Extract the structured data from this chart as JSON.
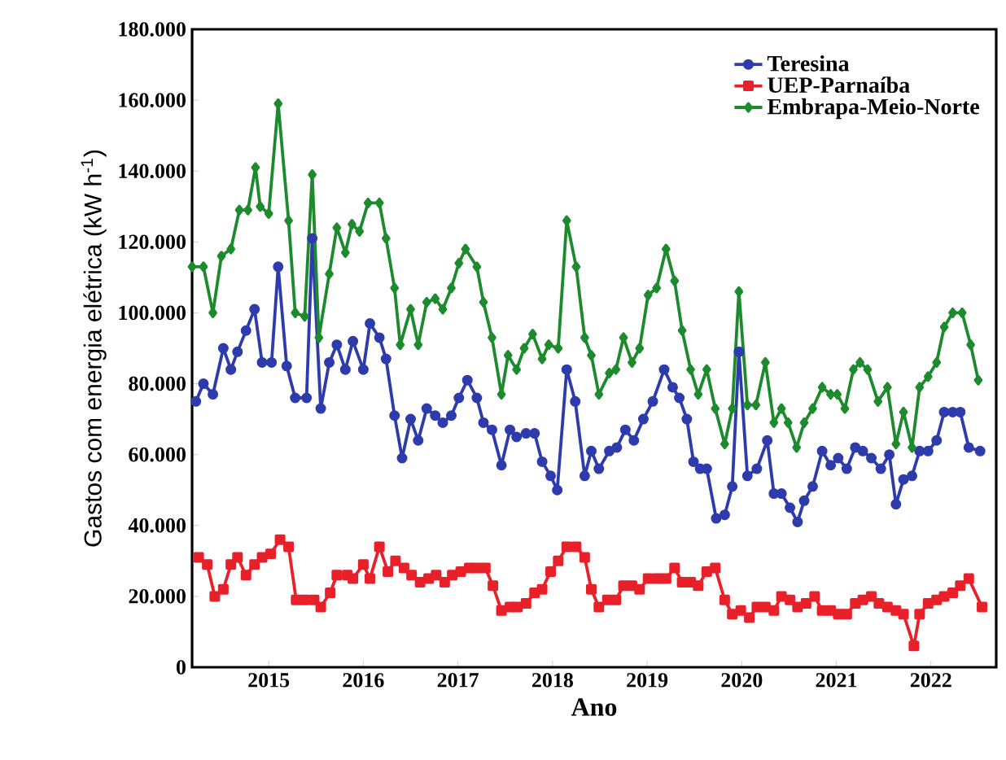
{
  "chart_data": {
    "type": "line",
    "xlabel": "Ano",
    "ylabel": "Gastos com energia elétrica (kW h$^{-1}$)",
    "xlim": [
      2014.19,
      2022.69
    ],
    "xticks": [
      2015,
      2016,
      2017,
      2018,
      2019,
      2020,
      2021,
      2022
    ],
    "ylim": [
      0,
      180000
    ],
    "yticks": [
      0,
      {
        "value": 20000,
        "label": "20.000"
      },
      {
        "value": 40000,
        "label": "40.000"
      },
      {
        "value": 60000,
        "label": "60.000"
      },
      {
        "value": 80000,
        "label": "80.000"
      },
      {
        "value": 100000,
        "label": "100.000"
      },
      {
        "value": 120000,
        "label": "120.000"
      },
      {
        "value": 140000,
        "label": "140.000"
      },
      {
        "value": 160000,
        "label": "160.000"
      },
      {
        "value": 180000,
        "label": "180.000"
      }
    ],
    "grid": false,
    "legend": "top right",
    "line_style": "solid",
    "series": [
      {
        "name": "Teresina",
        "color": "#2e3bab",
        "marker": "circle",
        "x": [
          2014.23,
          2014.31,
          2014.41,
          2014.52,
          2014.6,
          2014.67,
          2014.76,
          2014.85,
          2014.93,
          2015.03,
          2015.1,
          2015.19,
          2015.28,
          2015.4,
          2015.46,
          2015.55,
          2015.64,
          2015.72,
          2015.81,
          2015.89,
          2016.0,
          2016.07,
          2016.17,
          2016.24,
          2016.33,
          2016.41,
          2016.5,
          2016.58,
          2016.67,
          2016.76,
          2016.84,
          2016.93,
          2017.01,
          2017.1,
          2017.2,
          2017.27,
          2017.36,
          2017.46,
          2017.55,
          2017.62,
          2017.72,
          2017.81,
          2017.89,
          2017.98,
          2018.05,
          2018.15,
          2018.24,
          2018.34,
          2018.41,
          2018.49,
          2018.6,
          2018.68,
          2018.77,
          2018.86,
          2018.96,
          2019.06,
          2019.18,
          2019.27,
          2019.34,
          2019.42,
          2019.49,
          2019.56,
          2019.63,
          2019.73,
          2019.82,
          2019.9,
          2019.97,
          2020.06,
          2020.16,
          2020.27,
          2020.34,
          2020.42,
          2020.51,
          2020.59,
          2020.66,
          2020.75,
          2020.85,
          2020.94,
          2021.02,
          2021.11,
          2021.2,
          2021.28,
          2021.37,
          2021.47,
          2021.56,
          2021.63,
          2021.71,
          2021.8,
          2021.88,
          2021.97,
          2022.06,
          2022.14,
          2022.23,
          2022.31,
          2022.4,
          2022.52
        ],
        "values": [
          75000,
          80000,
          77000,
          90000,
          84000,
          89000,
          95000,
          101000,
          86000,
          86000,
          113000,
          85000,
          76000,
          76000,
          121000,
          73000,
          86000,
          91000,
          84000,
          92000,
          84000,
          97000,
          93000,
          87000,
          71000,
          59000,
          70000,
          64000,
          73000,
          71000,
          69000,
          71000,
          76000,
          81000,
          76000,
          69000,
          67000,
          57000,
          67000,
          65000,
          66000,
          66000,
          58000,
          54000,
          50000,
          84000,
          75000,
          54000,
          61000,
          56000,
          61000,
          62000,
          67000,
          64000,
          70000,
          75000,
          84000,
          79000,
          76000,
          70000,
          58000,
          56000,
          56000,
          42000,
          43000,
          51000,
          89000,
          54000,
          56000,
          64000,
          49000,
          49000,
          45000,
          41000,
          47000,
          51000,
          61000,
          57000,
          59000,
          56000,
          62000,
          61000,
          59000,
          56000,
          60000,
          46000,
          53000,
          54000,
          61000,
          61000,
          64000,
          72000,
          72000,
          72000,
          62000,
          61000
        ]
      },
      {
        "name": "UEP-Parnaíba",
        "color": "#e8202a",
        "marker": "square",
        "x": [
          2014.26,
          2014.35,
          2014.43,
          2014.52,
          2014.6,
          2014.67,
          2014.76,
          2014.85,
          2014.93,
          2015.02,
          2015.12,
          2015.21,
          2015.29,
          2015.38,
          2015.48,
          2015.55,
          2015.65,
          2015.72,
          2015.83,
          2015.89,
          2016.0,
          2016.07,
          2016.17,
          2016.26,
          2016.34,
          2016.43,
          2016.51,
          2016.6,
          2016.69,
          2016.77,
          2016.86,
          2016.94,
          2017.03,
          2017.12,
          2017.2,
          2017.29,
          2017.37,
          2017.46,
          2017.55,
          2017.63,
          2017.72,
          2017.81,
          2017.89,
          2017.98,
          2018.06,
          2018.15,
          2018.25,
          2018.34,
          2018.41,
          2018.49,
          2018.58,
          2018.67,
          2018.75,
          2018.84,
          2018.92,
          2019.01,
          2019.11,
          2019.2,
          2019.29,
          2019.37,
          2019.46,
          2019.54,
          2019.63,
          2019.72,
          2019.82,
          2019.9,
          2019.99,
          2020.08,
          2020.16,
          2020.25,
          2020.34,
          2020.42,
          2020.51,
          2020.59,
          2020.68,
          2020.77,
          2020.85,
          2020.94,
          2021.02,
          2021.11,
          2021.2,
          2021.28,
          2021.37,
          2021.45,
          2021.54,
          2021.63,
          2021.71,
          2021.82,
          2021.88,
          2021.97,
          2022.06,
          2022.14,
          2022.23,
          2022.31,
          2022.4,
          2022.54
        ],
        "values": [
          31000,
          29000,
          20000,
          22000,
          29000,
          31000,
          26000,
          29000,
          31000,
          32000,
          36000,
          34000,
          19000,
          19000,
          19000,
          17000,
          21000,
          26000,
          26000,
          25000,
          29000,
          25000,
          34000,
          27000,
          30000,
          28000,
          26000,
          24000,
          25000,
          26000,
          24000,
          26000,
          27000,
          28000,
          28000,
          28000,
          23000,
          16000,
          17000,
          17000,
          18000,
          21000,
          22000,
          27000,
          30000,
          34000,
          34000,
          31000,
          22000,
          17000,
          19000,
          19000,
          23000,
          23000,
          22000,
          25000,
          25000,
          25000,
          28000,
          24000,
          24000,
          23000,
          27000,
          28000,
          19000,
          15000,
          16000,
          14000,
          17000,
          17000,
          16000,
          20000,
          19000,
          17000,
          18000,
          20000,
          16000,
          16000,
          15000,
          15000,
          18000,
          19000,
          20000,
          18000,
          17000,
          16000,
          15000,
          6000,
          15000,
          18000,
          19000,
          20000,
          21000,
          23000,
          25000,
          17000
        ]
      },
      {
        "name": "Embrapa-Meio-Norte",
        "color": "#1e8a2e",
        "marker": "diamond",
        "x": [
          2014.19,
          2014.31,
          2014.41,
          2014.5,
          2014.6,
          2014.69,
          2014.78,
          2014.86,
          2014.91,
          2015.0,
          2015.1,
          2015.21,
          2015.28,
          2015.38,
          2015.46,
          2015.53,
          2015.64,
          2015.72,
          2015.81,
          2015.88,
          2015.96,
          2016.05,
          2016.17,
          2016.24,
          2016.33,
          2016.39,
          2016.5,
          2016.58,
          2016.67,
          2016.76,
          2016.84,
          2016.93,
          2017.01,
          2017.08,
          2017.2,
          2017.27,
          2017.36,
          2017.46,
          2017.53,
          2017.62,
          2017.7,
          2017.79,
          2017.89,
          2017.96,
          2018.06,
          2018.15,
          2018.25,
          2018.34,
          2018.41,
          2018.49,
          2018.6,
          2018.67,
          2018.75,
          2018.84,
          2018.92,
          2019.01,
          2019.1,
          2019.2,
          2019.29,
          2019.37,
          2019.46,
          2019.54,
          2019.63,
          2019.72,
          2019.82,
          2019.9,
          2019.97,
          2020.06,
          2020.15,
          2020.25,
          2020.34,
          2020.42,
          2020.49,
          2020.58,
          2020.66,
          2020.75,
          2020.85,
          2020.94,
          2021.01,
          2021.09,
          2021.18,
          2021.25,
          2021.33,
          2021.44,
          2021.54,
          2021.63,
          2021.71,
          2021.8,
          2021.88,
          2021.97,
          2022.06,
          2022.14,
          2022.23,
          2022.33,
          2022.42,
          2022.5
        ],
        "values": [
          113000,
          113000,
          100000,
          116000,
          118000,
          129000,
          129000,
          141000,
          130000,
          128000,
          159000,
          126000,
          100000,
          99000,
          139000,
          93000,
          111000,
          124000,
          117000,
          125000,
          123000,
          131000,
          131000,
          121000,
          107000,
          91000,
          101000,
          91000,
          103000,
          104000,
          101000,
          107000,
          114000,
          118000,
          113000,
          103000,
          93000,
          77000,
          88000,
          84000,
          90000,
          94000,
          87000,
          91000,
          90000,
          126000,
          113000,
          93000,
          88000,
          77000,
          83000,
          84000,
          93000,
          86000,
          90000,
          105000,
          107000,
          118000,
          109000,
          95000,
          84000,
          77000,
          84000,
          73000,
          63000,
          73000,
          106000,
          74000,
          74000,
          86000,
          69000,
          73000,
          69000,
          62000,
          69000,
          73000,
          79000,
          77000,
          77000,
          73000,
          84000,
          86000,
          84000,
          75000,
          79000,
          63000,
          72000,
          62000,
          79000,
          82000,
          86000,
          96000,
          100000,
          100000,
          91000,
          81000
        ]
      }
    ]
  }
}
